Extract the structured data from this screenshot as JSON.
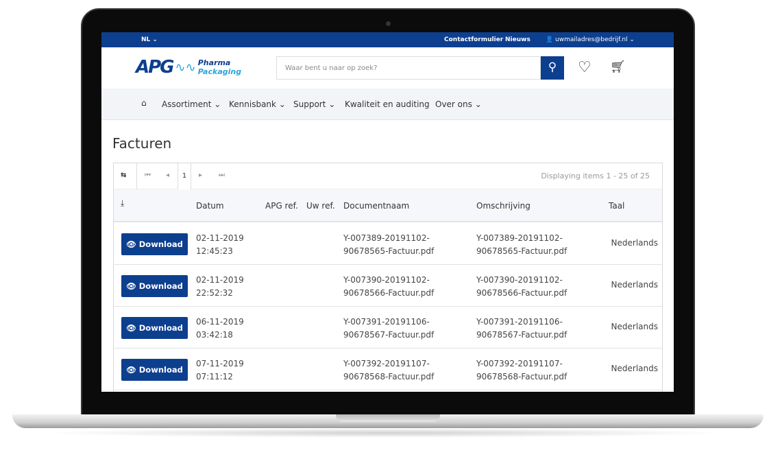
{
  "topbar": {
    "language": "NL ⌄",
    "contact": "Contactformulier",
    "news": "Nieuws",
    "account": "uwmailadres@bedrijf.nl ⌄"
  },
  "header": {
    "logo_apg": "APG",
    "logo_pharma": "Pharma",
    "logo_packaging": "Packaging",
    "search_placeholder": "Waar bent u naar op zoek?"
  },
  "nav": {
    "items": [
      {
        "label": "Assortiment ⌄"
      },
      {
        "label": "Kennisbank ⌄"
      },
      {
        "label": "Support ⌄"
      },
      {
        "label": "Kwaliteit en auditing"
      },
      {
        "label": "Over ons ⌄"
      }
    ]
  },
  "page": {
    "title": "Facturen"
  },
  "grid": {
    "current_page": "1",
    "displaying": "Displaying items 1 - 25 of 25",
    "columns": {
      "datum": "Datum",
      "apg_ref": "APG ref.",
      "uw_ref": "Uw ref.",
      "documentnaam": "Documentnaam",
      "omschrijving": "Omschrijving",
      "taal": "Taal"
    },
    "download_label": "Download",
    "rows": [
      {
        "date": "02-11-2019",
        "time": "12:45:23",
        "doc1": "Y-007389-20191102-",
        "doc2": "90678565-Factuur.pdf",
        "taal": "Nederlands"
      },
      {
        "date": "02-11-2019",
        "time": "22:52:32",
        "doc1": "Y-007390-20191102-",
        "doc2": "90678566-Factuur.pdf",
        "taal": "Nederlands"
      },
      {
        "date": "06-11-2019",
        "time": "03:42:18",
        "doc1": "Y-007391-20191106-",
        "doc2": "90678567-Factuur.pdf",
        "taal": "Nederlands"
      },
      {
        "date": "07-11-2019",
        "time": "07:11:12",
        "doc1": "Y-007392-20191107-",
        "doc2": "90678568-Factuur.pdf",
        "taal": "Nederlands"
      }
    ]
  }
}
